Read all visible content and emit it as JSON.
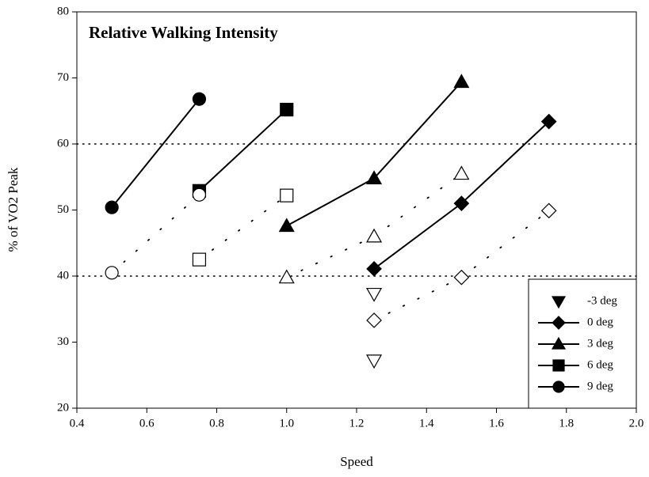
{
  "chart_data": {
    "type": "line",
    "title": "Relative Walking Intensity",
    "x_label": "Speed",
    "y_label": "% of VO2 Peak",
    "xlim": [
      0.4,
      2.0
    ],
    "ylim": [
      20,
      80
    ],
    "xticks": [
      0.4,
      0.6,
      0.8,
      {
        "value": 1.0,
        "label": "1.0"
      },
      1.2,
      1.4,
      1.6,
      1.8,
      {
        "value": 2.0,
        "label": "2.0"
      }
    ],
    "yticks": [
      20,
      30,
      40,
      50,
      60,
      70,
      80
    ],
    "reference_lines": [
      40,
      60
    ],
    "legend_position": "lower right",
    "series": [
      {
        "name": "-3 deg",
        "marker": "triangle-down",
        "filled": true,
        "line": "none",
        "color": "#000000",
        "x": [],
        "values": []
      },
      {
        "name": "0 deg",
        "marker": "diamond",
        "filled": true,
        "line": "solid",
        "color": "#000000",
        "x": [
          1.25,
          1.5,
          1.75
        ],
        "values": [
          41.1,
          51.0,
          63.4
        ]
      },
      {
        "name": "3 deg",
        "marker": "triangle",
        "filled": true,
        "line": "solid",
        "color": "#000000",
        "x": [
          1.0,
          1.25,
          1.5
        ],
        "values": [
          47.6,
          54.8,
          69.4
        ]
      },
      {
        "name": "6 deg",
        "marker": "square",
        "filled": true,
        "line": "solid",
        "color": "#000000",
        "x": [
          0.75,
          1.0
        ],
        "values": [
          52.9,
          65.2
        ]
      },
      {
        "name": "9 deg",
        "marker": "circle",
        "filled": true,
        "line": "solid",
        "color": "#000000",
        "x": [
          0.5,
          0.75
        ],
        "values": [
          50.4,
          66.8
        ]
      },
      {
        "marker": "triangle-down",
        "filled": false,
        "line": "none",
        "color": "#000000",
        "x": [
          1.25,
          1.25
        ],
        "values": [
          37.3,
          27.2
        ]
      },
      {
        "marker": "diamond",
        "filled": false,
        "line": "dotted",
        "color": "#000000",
        "x": [
          1.25,
          1.5,
          1.75
        ],
        "values": [
          33.3,
          39.8,
          49.9
        ]
      },
      {
        "marker": "triangle",
        "filled": false,
        "line": "dotted",
        "color": "#000000",
        "x": [
          1.0,
          1.25,
          1.5
        ],
        "values": [
          39.8,
          46.0,
          55.5
        ]
      },
      {
        "marker": "square",
        "filled": false,
        "line": "dotted",
        "color": "#000000",
        "x": [
          0.75,
          1.0
        ],
        "values": [
          42.5,
          52.2
        ]
      },
      {
        "marker": "circle",
        "filled": false,
        "line": "dotted",
        "color": "#000000",
        "x": [
          0.5,
          0.75
        ],
        "values": [
          40.5,
          52.3
        ]
      }
    ]
  }
}
